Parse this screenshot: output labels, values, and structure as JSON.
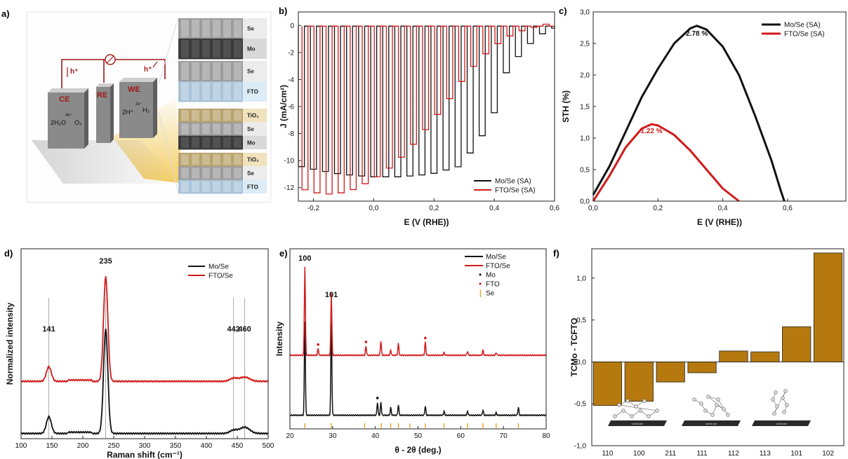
{
  "panels": {
    "a": {
      "letter": "a)",
      "electrodes": [
        "CE",
        "RE",
        "WE"
      ],
      "ce_reaction": [
        "4h⁺",
        "2H₂O",
        "O₂"
      ],
      "we_reaction": [
        "2e⁻",
        "2H⁺",
        "H₂"
      ],
      "carrier_left": "h⁺",
      "carrier_right": "h⁺",
      "stacks": [
        {
          "layers": [
            "Se",
            "Mo"
          ]
        },
        {
          "layers": [
            "Se",
            "FTO"
          ]
        },
        {
          "layers": [
            "TiO₂",
            "Se",
            "Mo"
          ]
        },
        {
          "layers": [
            "TiO₂",
            "Se",
            "FTO"
          ]
        }
      ],
      "colors": {
        "wire": "#a01818",
        "electrode_front": "#8a8a8a",
        "electrode_top": "#cfcfcf",
        "light": "#f3c64a"
      }
    },
    "b": {
      "letter": "b)"
    },
    "c": {
      "letter": "c)"
    },
    "d": {
      "letter": "d)"
    },
    "e": {
      "letter": "e)"
    },
    "f": {
      "letter": "f)",
      "substrate_label": "substrate"
    }
  },
  "chart_data": [
    {
      "id": "b",
      "type": "line",
      "xlabel": "E (V (RHE))",
      "ylabel": "J (mA/cm²)",
      "xlim": [
        -0.25,
        0.6
      ],
      "ylim": [
        -13,
        1
      ],
      "xticks": [
        "-0,2",
        "0,0",
        "0,2",
        "0,4",
        "0,6"
      ],
      "xtick_values": [
        -0.2,
        0.0,
        0.2,
        0.4,
        0.6
      ],
      "yticks": [
        "0",
        "-2",
        "-4",
        "-6",
        "-8",
        "-10",
        "-12"
      ],
      "ytick_values": [
        0,
        -2,
        -4,
        -6,
        -8,
        -10,
        -12
      ],
      "legend_position": "bottom-right",
      "series": [
        {
          "name": "Mo/Se (SA)",
          "color": "#111111",
          "mode": "chopped",
          "x": [
            -0.24,
            -0.2,
            -0.1,
            0.0,
            0.1,
            0.2,
            0.3,
            0.4,
            0.45,
            0.5,
            0.55,
            0.6
          ],
          "y": [
            -10.4,
            -10.6,
            -11.0,
            -11.2,
            -11.2,
            -11.0,
            -10.4,
            -7.2,
            -3.5,
            -2.0,
            -0.9,
            -0.2
          ]
        },
        {
          "name": "FTO/Se (SA)",
          "color": "#d11a1a",
          "mode": "chopped",
          "x": [
            -0.24,
            -0.2,
            -0.15,
            -0.1,
            -0.05,
            0.0,
            0.05,
            0.1,
            0.15,
            0.2,
            0.25,
            0.3,
            0.35,
            0.4,
            0.45,
            0.5,
            0.55,
            0.6
          ],
          "y": [
            -12.0,
            -12.3,
            -12.5,
            -12.4,
            -12.1,
            -11.5,
            -10.8,
            -9.8,
            -8.6,
            -7.2,
            -5.8,
            -4.2,
            -2.8,
            -1.7,
            -0.9,
            -0.4,
            -0.1,
            0.2
          ]
        }
      ]
    },
    {
      "id": "c",
      "type": "line",
      "xlabel": "E (V (RHE))",
      "ylabel": "STH (%)",
      "xlim": [
        0,
        0.78
      ],
      "ylim": [
        0,
        3.0
      ],
      "xticks": [
        "0,0",
        "0,2",
        "0,4",
        "0,6"
      ],
      "xtick_values": [
        0,
        0.2,
        0.4,
        0.6
      ],
      "yticks": [
        "0,0",
        "0,5",
        "1,0",
        "1,5",
        "2,0",
        "2,5",
        "3,0"
      ],
      "ytick_values": [
        0,
        0.5,
        1.0,
        1.5,
        2.0,
        2.5,
        3.0
      ],
      "legend_position": "top-right",
      "annotations": [
        {
          "text": "2.78 %",
          "x": 0.32,
          "y": 2.62,
          "color": "#111111"
        },
        {
          "text": "1.22 %",
          "x": 0.18,
          "y": 1.08,
          "color": "#d11a1a"
        }
      ],
      "series": [
        {
          "name": "Mo/Se (SA)",
          "color": "#111111",
          "x": [
            0.0,
            0.05,
            0.1,
            0.15,
            0.2,
            0.25,
            0.3,
            0.32,
            0.35,
            0.4,
            0.45,
            0.5,
            0.55,
            0.58,
            0.59
          ],
          "y": [
            0.1,
            0.55,
            1.1,
            1.65,
            2.1,
            2.5,
            2.74,
            2.78,
            2.72,
            2.45,
            2.0,
            1.35,
            0.65,
            0.15,
            0.0
          ]
        },
        {
          "name": "FTO/Se (SA)",
          "color": "#d11a1a",
          "x": [
            0.0,
            0.05,
            0.1,
            0.15,
            0.18,
            0.2,
            0.25,
            0.3,
            0.35,
            0.4,
            0.45
          ],
          "y": [
            0.0,
            0.4,
            0.85,
            1.15,
            1.22,
            1.2,
            1.05,
            0.8,
            0.5,
            0.2,
            0.0
          ]
        }
      ]
    },
    {
      "id": "d",
      "type": "line",
      "xlabel": "Raman shift (cm⁻¹)",
      "ylabel": "Normalized intensity",
      "xlim": [
        100,
        500
      ],
      "xticks": [
        "100",
        "150",
        "200",
        "250",
        "300",
        "350",
        "400",
        "450",
        "500"
      ],
      "xtick_values": [
        100,
        150,
        200,
        250,
        300,
        350,
        400,
        450,
        500
      ],
      "legend_position": "top-right",
      "peak_labels": [
        {
          "text": "141",
          "x": 145
        },
        {
          "text": "235",
          "x": 237
        },
        {
          "text": "442",
          "x": 444
        },
        {
          "text": "460",
          "x": 462
        }
      ],
      "series": [
        {
          "name": "Mo/Se",
          "color": "#111111",
          "baseline": 0.05,
          "peaks": [
            [
              145,
              0.16,
              4
            ],
            [
              237,
              1.0,
              3.5
            ],
            [
              444,
              0.03,
              6
            ],
            [
              462,
              0.06,
              8
            ]
          ]
        },
        {
          "name": "FTO/Se",
          "color": "#d11a1a",
          "baseline": 0.55,
          "peaks": [
            [
              145,
              0.14,
              4
            ],
            [
              237,
              1.0,
              3.5
            ],
            [
              444,
              0.03,
              6
            ],
            [
              462,
              0.04,
              8
            ]
          ]
        }
      ]
    },
    {
      "id": "e",
      "type": "line",
      "xlabel": "θ - 2θ (deg.)",
      "ylabel": "Intensity",
      "xlim": [
        20,
        80
      ],
      "xticks": [
        "20",
        "30",
        "40",
        "50",
        "60",
        "70",
        "80"
      ],
      "xtick_values": [
        20,
        30,
        40,
        50,
        60,
        70,
        80
      ],
      "legend_position": "top-right",
      "legend_markers": [
        {
          "label": "Mo",
          "symbol": "•",
          "color": "#111111"
        },
        {
          "label": "FTO",
          "symbol": "•",
          "color": "#d11a1a"
        },
        {
          "label": "Se",
          "symbol": "|",
          "color": "#f0a020"
        }
      ],
      "peak_labels": [
        {
          "text": "100",
          "x": 23.5
        },
        {
          "text": "101",
          "x": 29.7
        }
      ],
      "se_reference": [
        23.5,
        29.7,
        37.5,
        41.4,
        43.6,
        45.4,
        48.1,
        51.7,
        56.1,
        61.6,
        65.2,
        68.3,
        73.5
      ],
      "series": [
        {
          "name": "Mo/Se",
          "color": "#111111",
          "baseline": 0.04,
          "peaks": [
            [
              23.5,
              0.72
            ],
            [
              29.7,
              0.72
            ],
            [
              40.5,
              0.1
            ],
            [
              41.3,
              0.1
            ],
            [
              43.6,
              0.06
            ],
            [
              45.4,
              0.08
            ],
            [
              51.7,
              0.07
            ],
            [
              56.1,
              0.03
            ],
            [
              61.6,
              0.03
            ],
            [
              65.2,
              0.04
            ],
            [
              68.3,
              0.02
            ],
            [
              73.5,
              0.06
            ]
          ]
        },
        {
          "name": "FTO/Se",
          "color": "#d11a1a",
          "baseline": 0.5,
          "peaks": [
            [
              23.5,
              0.68
            ],
            [
              26.6,
              0.05
            ],
            [
              29.7,
              0.48
            ],
            [
              37.8,
              0.07
            ],
            [
              41.3,
              0.11
            ],
            [
              43.6,
              0.04
            ],
            [
              45.4,
              0.09
            ],
            [
              51.7,
              0.1
            ],
            [
              56.1,
              0.02
            ],
            [
              61.6,
              0.03
            ],
            [
              65.2,
              0.04
            ],
            [
              68.3,
              0.02
            ]
          ]
        }
      ],
      "markers": [
        {
          "x": 40.5,
          "series": "Mo/Se",
          "color": "#111111"
        },
        {
          "x": 26.6,
          "series": "FTO/Se",
          "color": "#d11a1a"
        },
        {
          "x": 37.8,
          "series": "FTO/Se",
          "color": "#d11a1a"
        },
        {
          "x": 51.7,
          "series": "FTO/Se",
          "color": "#d11a1a"
        }
      ]
    },
    {
      "id": "f",
      "type": "bar",
      "ylabel": "TCMo - TCFTO",
      "categories": [
        "110",
        "100",
        "211",
        "111",
        "112",
        "113",
        "101",
        "102"
      ],
      "values": [
        -0.52,
        -0.47,
        -0.24,
        -0.13,
        0.13,
        0.12,
        0.42,
        1.3
      ],
      "ylim": [
        -1.0,
        1.35
      ],
      "yticks": [
        "-1,0",
        "-0,5",
        "0,0",
        "0,5",
        "1,0"
      ],
      "ytick_values": [
        -1.0,
        -0.5,
        0.0,
        0.5,
        1.0
      ],
      "bar_color": "#b5790f"
    }
  ]
}
